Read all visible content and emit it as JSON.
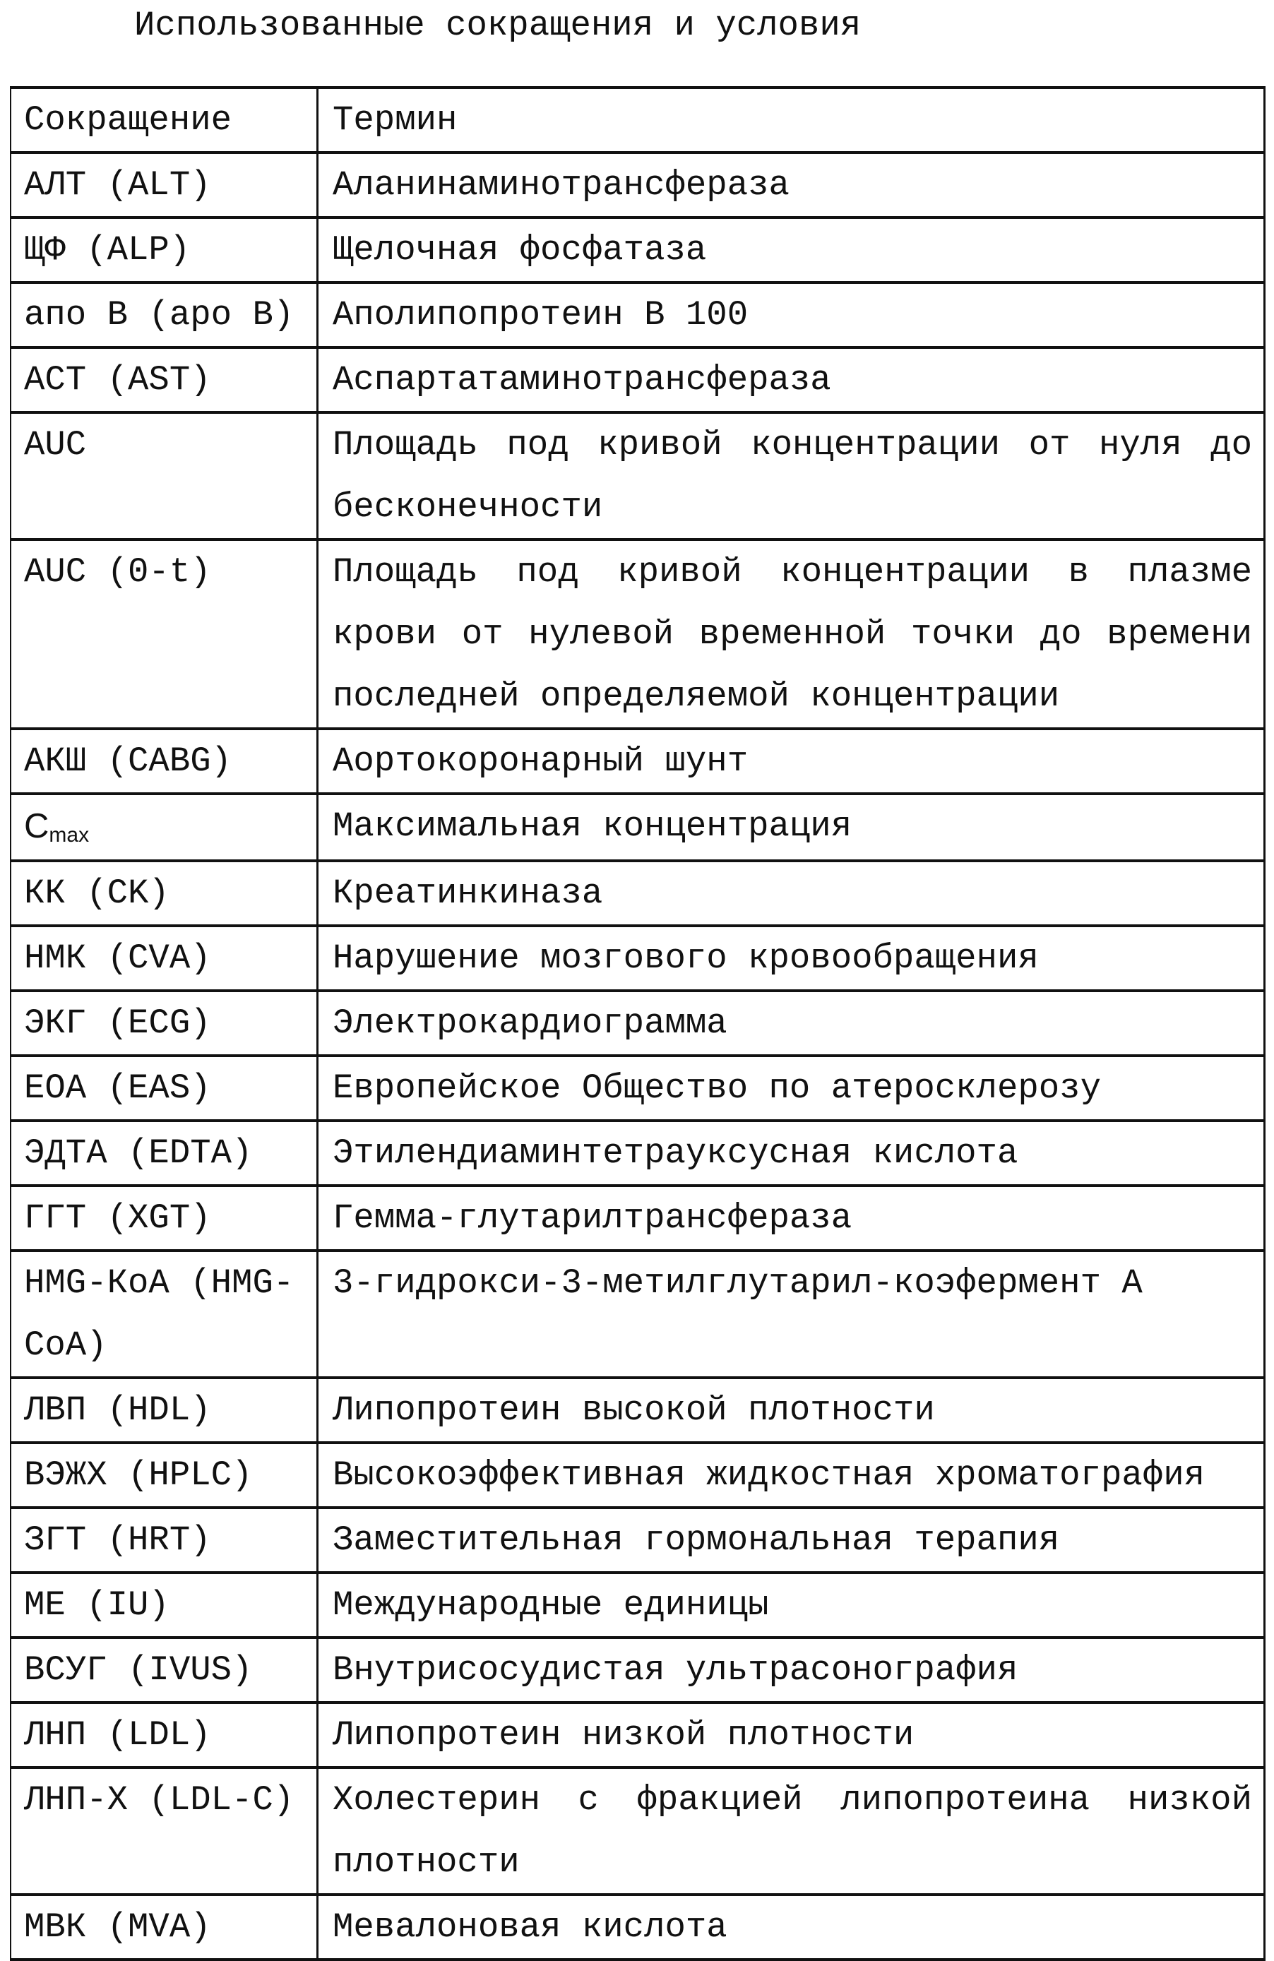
{
  "title": "Использованные сокращения и условия",
  "table": {
    "headers": [
      "Сокращение",
      "Термин"
    ],
    "rows": [
      {
        "abbr": "АЛТ (ALT)",
        "term": "Аланинаминотрансфераза"
      },
      {
        "abbr": "ЩФ (ALP)",
        "term": "Щелочная фосфатаза"
      },
      {
        "abbr": "апо B (apo B)",
        "term": "Аполипопротеин B 100"
      },
      {
        "abbr": "АСТ (AST)",
        "term": "Аспартатаминотрансфераза"
      },
      {
        "abbr": "AUC",
        "term": "Площадь под кривой концентрации от нуля до бесконечности"
      },
      {
        "abbr": "AUC (0-t)",
        "term": "Площадь под кривой концентрации в плазме крови от нулевой временной точки до времени последней определяемой концентрации"
      },
      {
        "abbr": "АКШ (CABG)",
        "term": "Аортокоронарный шунт"
      },
      {
        "abbr": "C",
        "abbr_sub": "max",
        "term": "Максимальная концентрация"
      },
      {
        "abbr": "КК (CK)",
        "term": "Креатинкиназа"
      },
      {
        "abbr": "НМК (CVA)",
        "term": "Нарушение мозгового кровообращения"
      },
      {
        "abbr": "ЭКГ (ECG)",
        "term": "Электрокардиограмма"
      },
      {
        "abbr": "ЕОА (EAS)",
        "term": "Европейское Общество по атеросклерозу"
      },
      {
        "abbr": "ЭДТА (EDTA)",
        "term": "Этилендиаминтетрауксусная кислота"
      },
      {
        "abbr": "ГГТ (XGT)",
        "term": "Гемма-глутарилтрансфераза"
      },
      {
        "abbr": "HMG-КоА (HMG-CoA)",
        "term": "3-гидрокси-3-метилглутарил-коэфермент A"
      },
      {
        "abbr": "ЛВП (HDL)",
        "term": "Липопротеин высокой плотности"
      },
      {
        "abbr": "ВЭЖХ (HPLC)",
        "term": "Высокоэффективная жидкостная хроматография"
      },
      {
        "abbr": "ЗГТ (HRT)",
        "term": "Заместительная гормональная терапия"
      },
      {
        "abbr": "МЕ (IU)",
        "term": "Международные единицы"
      },
      {
        "abbr": "ВСУГ (IVUS)",
        "term": "Внутрисосудистая ультрасонография"
      },
      {
        "abbr": "ЛНП (LDL)",
        "term": "Липопротеин низкой плотности"
      },
      {
        "abbr": "ЛНП-Х (LDL-C)",
        "term": "Холестерин с фракцией липопротеина низкой плотности"
      },
      {
        "abbr": "МВК (MVA)",
        "term": "Мевалоновая кислота"
      }
    ]
  }
}
